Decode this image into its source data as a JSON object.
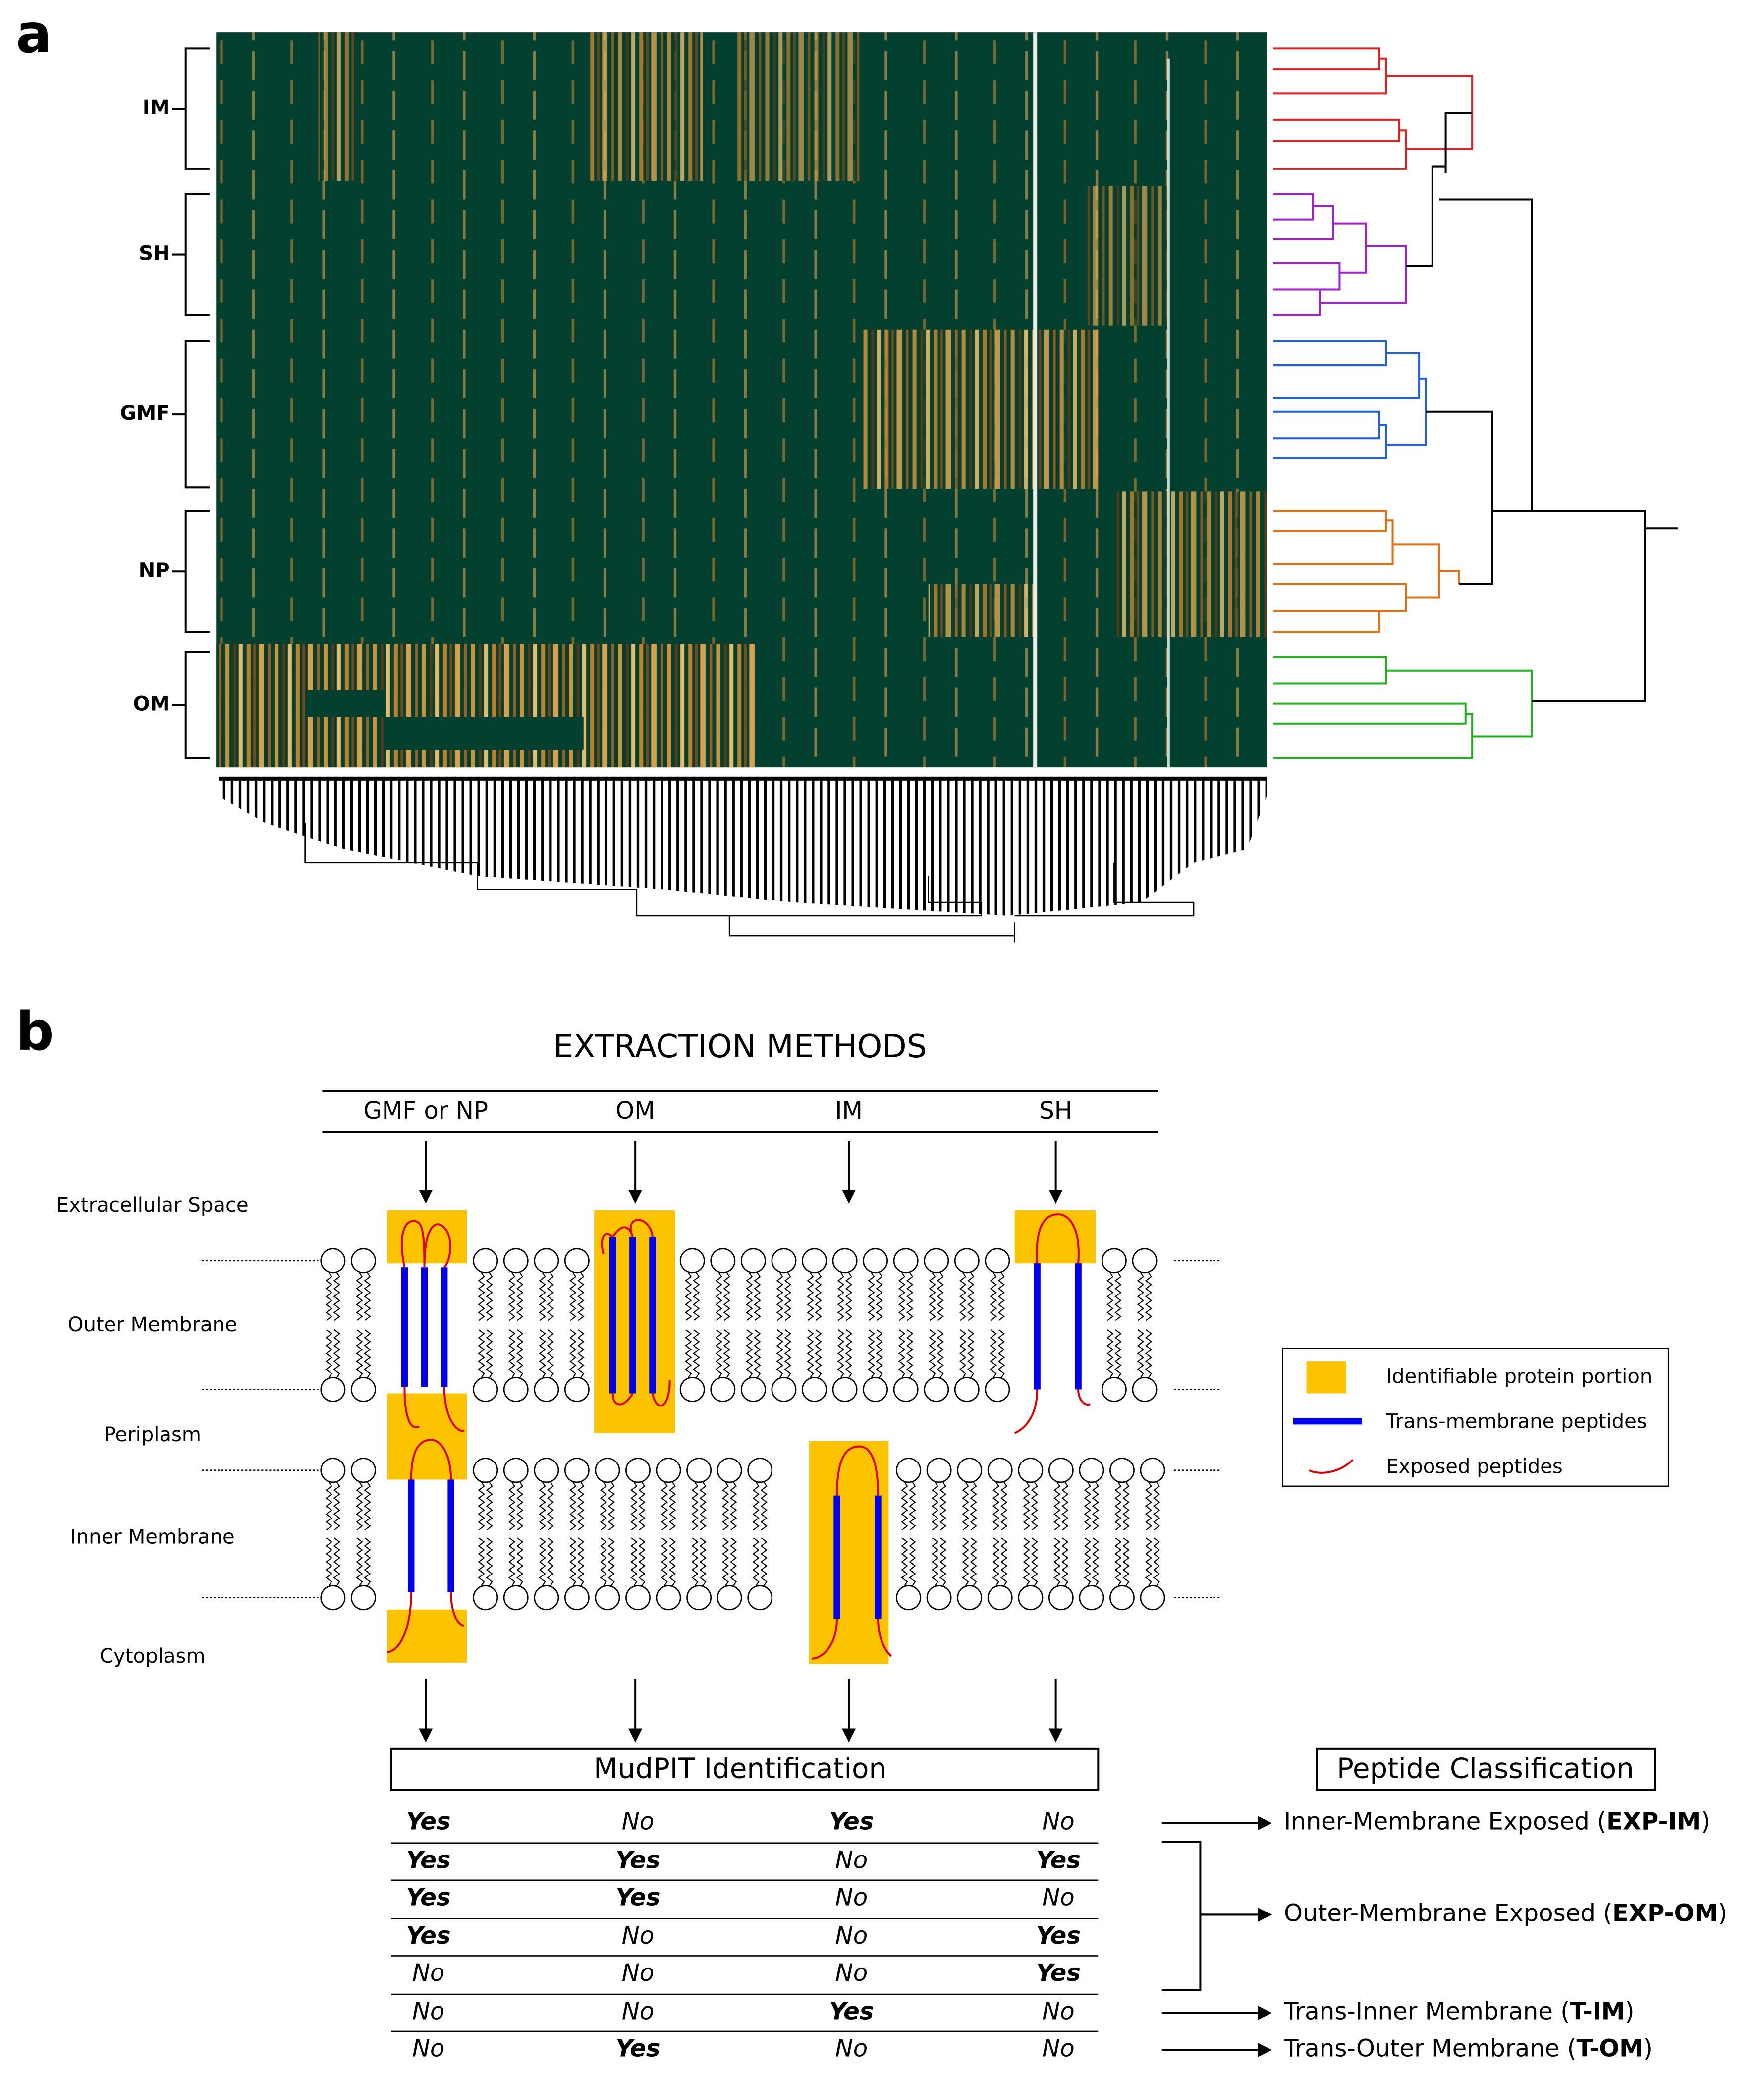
{
  "panel_labels": [
    "a",
    "b"
  ],
  "heatmap": {
    "row_groups": [
      "IM",
      "SH",
      "GMF",
      "NP",
      "OM"
    ]
  },
  "diagram": {
    "title": "EXTRACTION METHODS",
    "methods": [
      "GMF or NP",
      "OM",
      "IM",
      "SH"
    ],
    "compartments": [
      "Extracellular Space",
      "Outer Membrane",
      "Periplasm",
      "Inner Membrane",
      "Cytoplasm"
    ],
    "legend": [
      "Identifiable protein portion",
      "Trans-membrane peptides",
      "Exposed peptides"
    ],
    "identification_title": "MudPIT Identification",
    "classification_title": "Peptide Classification",
    "table": [
      [
        "Yes",
        "No",
        "Yes",
        "No"
      ],
      [
        "Yes",
        "Yes",
        "No",
        "Yes"
      ],
      [
        "Yes",
        "Yes",
        "No",
        "No"
      ],
      [
        "Yes",
        "No",
        "No",
        "Yes"
      ],
      [
        "No",
        "No",
        "No",
        "Yes"
      ],
      [
        "No",
        "No",
        "Yes",
        "No"
      ],
      [
        "No",
        "Yes",
        "No",
        "No"
      ]
    ],
    "classifications": [
      {
        "name": "Inner-Membrane Exposed (",
        "abbr": "EXP-IM",
        "end": ")"
      },
      {
        "name": "Outer-Membrane Exposed (",
        "abbr": "EXP-OM",
        "end": ")"
      },
      {
        "name": "Trans-Inner Membrane (",
        "abbr": "T-IM",
        "end": ")"
      },
      {
        "name": "Trans-Outer Membrane (",
        "abbr": "T-OM",
        "end": ")"
      }
    ]
  }
}
